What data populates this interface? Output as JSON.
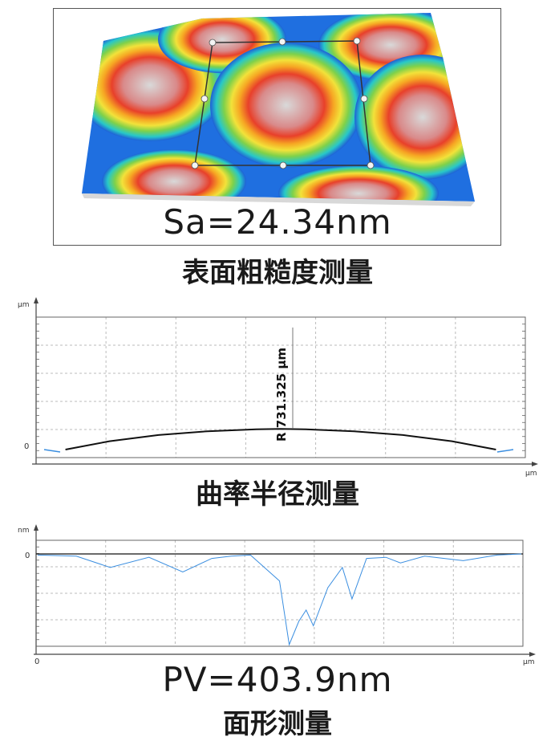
{
  "surface_panel": {
    "readout": "Sa=24.34nm",
    "caption": "表面粗糙度测量"
  },
  "curvature_panel": {
    "caption": "曲率半径测量",
    "annotation": "R 731.325 µm"
  },
  "form_panel": {
    "readout": "PV=403.9nm",
    "caption": "面形测量"
  },
  "chart_data": [
    {
      "type": "line",
      "xlabel": "µm",
      "ylabel": "µm",
      "yticks": [
        "0"
      ],
      "grid": true,
      "series": [
        {
          "color": "#111111",
          "x": [
            0.06,
            0.15,
            0.25,
            0.35,
            0.45,
            0.5,
            0.55,
            0.65,
            0.75,
            0.85,
            0.94
          ],
          "y": [
            0.0,
            0.55,
            0.95,
            1.2,
            1.33,
            1.35,
            1.33,
            1.2,
            0.95,
            0.55,
            0.0
          ]
        }
      ],
      "annotation": "R 731.325 µm"
    },
    {
      "type": "line",
      "xlabel": "µm",
      "ylabel": "nm",
      "xticks": [
        "0"
      ],
      "yticks": [
        "0"
      ],
      "grid": true,
      "series": [
        {
          "color": "#3a8ee0",
          "x": [
            0.0,
            0.08,
            0.15,
            0.23,
            0.3,
            0.36,
            0.4,
            0.44,
            0.5,
            0.52,
            0.54,
            0.555,
            0.57,
            0.6,
            0.63,
            0.65,
            0.68,
            0.72,
            0.75,
            0.8,
            0.88,
            0.95,
            1.0
          ],
          "y": [
            -5,
            -10,
            -60,
            -15,
            -80,
            -20,
            -10,
            -5,
            -120,
            -403.9,
            -300,
            -250,
            -320,
            -150,
            -60,
            -200,
            -20,
            -15,
            -40,
            -10,
            -30,
            -5,
            0
          ]
        }
      ]
    }
  ]
}
